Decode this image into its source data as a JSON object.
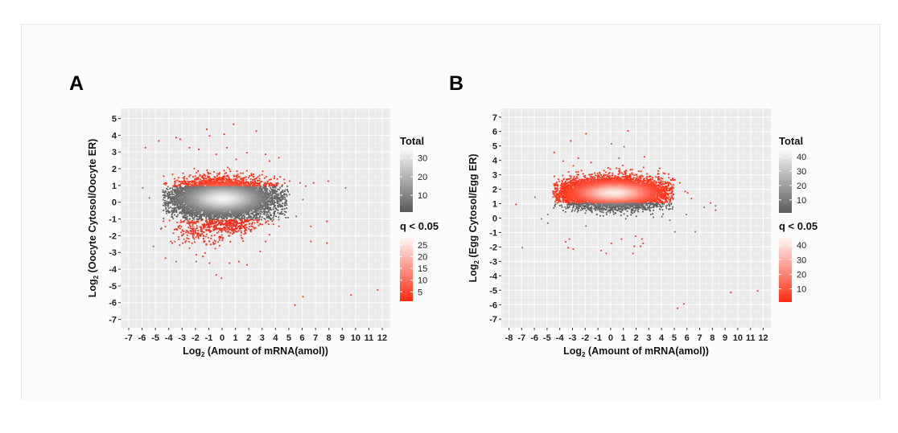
{
  "chart_data": [
    {
      "type": "heatmap",
      "panel_label": "A",
      "xlabel": "Log₂ (Amount of mRNA(amol))",
      "xlabel_main": "Log",
      "xlabel_sub": "2",
      "xlabel_rest": " (Amount of mRNA(amol))",
      "ylabel_main": "Log",
      "ylabel_sub": "2",
      "ylabel_rest": " (Oocyte Cytosol/Oocyte ER)",
      "xlim": [
        -7.6,
        12.6
      ],
      "ylim": [
        -7.5,
        5.6
      ],
      "xticks": [
        -7,
        -6,
        -5,
        -4,
        -3,
        -2,
        -1,
        0,
        1,
        2,
        3,
        4,
        5,
        6,
        7,
        8,
        9,
        10,
        11,
        12
      ],
      "yticks": [
        5,
        4,
        3,
        2,
        1,
        0,
        -1,
        -2,
        -3,
        -4,
        -5,
        -6,
        -7
      ],
      "grid": true,
      "significance_threshold_y": [
        1,
        -1
      ],
      "legend_placement": "right",
      "legend_total": {
        "title": "Total",
        "ticks": [
          30,
          20,
          10
        ],
        "range": [
          1,
          35
        ],
        "colors": [
          "#5a5a5a",
          "#fafafa"
        ]
      },
      "legend_q": {
        "title": "q < 0.05",
        "ticks": [
          25,
          20,
          15,
          10,
          5
        ],
        "range": [
          1,
          28
        ],
        "colors": [
          "#ff2a10",
          "#fff6f4"
        ]
      },
      "cloud": {
        "center_x": 0,
        "center_y": 0.25,
        "sx": 1.9,
        "sy": 0.55,
        "x_extent": [
          -4.2,
          4.5
        ]
      },
      "outliers_gray": [
        [
          -6,
          0.9
        ],
        [
          -5.5,
          0.3
        ],
        [
          -5.2,
          -2.6
        ],
        [
          -4.6,
          -1.5
        ],
        [
          -4.4,
          0.0
        ],
        [
          5,
          0.5
        ],
        [
          6,
          0.2
        ],
        [
          9.2,
          0.9
        ],
        [
          -3.5,
          -3.5
        ],
        [
          -2,
          -3.5
        ],
        [
          4.2,
          -1.0
        ],
        [
          5.5,
          -0.8
        ]
      ],
      "outliers_red": [
        [
          -5.8,
          3.3
        ],
        [
          -4.8,
          3.7
        ],
        [
          -3.5,
          3.9
        ],
        [
          -3.2,
          3.8
        ],
        [
          -1.2,
          4.4
        ],
        [
          -1,
          4.0
        ],
        [
          0.1,
          4.1
        ],
        [
          0.8,
          4.7
        ],
        [
          2.5,
          4.3
        ],
        [
          -2.5,
          3.3
        ],
        [
          -1.8,
          3.2
        ],
        [
          -0.5,
          2.9
        ],
        [
          0.3,
          3.3
        ],
        [
          1,
          2.6
        ],
        [
          1.8,
          3.0
        ],
        [
          3.2,
          2.9
        ],
        [
          3.5,
          2.5
        ],
        [
          4.2,
          2.7
        ],
        [
          4.6,
          1.4
        ],
        [
          5,
          1.3
        ],
        [
          5.8,
          1.2
        ],
        [
          6.2,
          1.0
        ],
        [
          7.9,
          1.3
        ],
        [
          6.8,
          1.2
        ],
        [
          -4.3,
          -3.3
        ],
        [
          -3.8,
          -2.4
        ],
        [
          -3.9,
          -2.3
        ],
        [
          -3,
          -2.4
        ],
        [
          -2.5,
          -2.7
        ],
        [
          -2,
          -3.1
        ],
        [
          -1.5,
          -3.2
        ],
        [
          -1,
          -3.6
        ],
        [
          -0.5,
          -4.3
        ],
        [
          -0.1,
          -4.5
        ],
        [
          0.5,
          -3.6
        ],
        [
          1.2,
          -3.5
        ],
        [
          1.8,
          -3.7
        ],
        [
          2.8,
          -2.9
        ],
        [
          3.2,
          -2.3
        ],
        [
          3.5,
          -1.9
        ],
        [
          6.6,
          -1.4
        ],
        [
          6.6,
          -2.3
        ],
        [
          7.8,
          -1.1
        ],
        [
          7.8,
          -2.4
        ],
        [
          5.4,
          -6.1
        ],
        [
          6,
          -5.6
        ],
        [
          9.6,
          -5.5
        ],
        [
          11.6,
          -5.2
        ]
      ],
      "red_clusters": [
        [
          -1.5,
          -1.6,
          1.2,
          0.45
        ],
        [
          0.8,
          -1.3,
          0.8,
          0.3
        ]
      ]
    },
    {
      "type": "heatmap",
      "panel_label": "B",
      "xlabel": "Log₂ (Amount of mRNA(amol))",
      "xlabel_main": "Log",
      "xlabel_sub": "2",
      "xlabel_rest": " (Amount of mRNA(amol))",
      "ylabel_main": "Log",
      "ylabel_sub": "2",
      "ylabel_rest": " (Egg Cytosol/Egg ER)",
      "xlim": [
        -8.6,
        12.6
      ],
      "ylim": [
        -7.6,
        7.6
      ],
      "xticks": [
        -8,
        -7,
        -6,
        -5,
        -4,
        -3,
        -2,
        -1,
        0,
        1,
        2,
        3,
        4,
        5,
        6,
        7,
        8,
        9,
        10,
        11,
        12
      ],
      "yticks": [
        7,
        6,
        5,
        4,
        3,
        2,
        1,
        0,
        -1,
        -2,
        -3,
        -4,
        -5,
        -6,
        -7
      ],
      "grid": true,
      "significance_threshold_y": [
        1.1,
        -1
      ],
      "legend_placement": "right",
      "legend_total": {
        "title": "Total",
        "ticks": [
          40,
          30,
          20,
          10
        ],
        "range": [
          1,
          45
        ],
        "colors": [
          "#5a5a5a",
          "#fafafa"
        ]
      },
      "legend_q": {
        "title": "q < 0.05",
        "ticks": [
          40,
          30,
          20,
          10
        ],
        "range": [
          1,
          45
        ],
        "colors": [
          "#ff2a10",
          "#fff6f4"
        ]
      },
      "cloud": {
        "center_x": 0.2,
        "center_y": 1.8,
        "sx": 2.0,
        "sy": 0.5,
        "x_extent": [
          -4.3,
          4.5
        ]
      },
      "outliers_gray": [
        [
          -7,
          -2
        ],
        [
          -6,
          1.5
        ],
        [
          -5.5,
          0.0
        ],
        [
          -5,
          0.3
        ],
        [
          -2,
          -0.5
        ],
        [
          4.6,
          -0.1
        ],
        [
          5.9,
          0.3
        ],
        [
          6.6,
          -0.9
        ],
        [
          7.3,
          0.8
        ],
        [
          8.2,
          0.9
        ],
        [
          5,
          -0.9
        ],
        [
          -5,
          -0.3
        ],
        [
          0,
          5.2
        ],
        [
          1,
          5.0
        ],
        [
          0.6,
          4.2
        ]
      ],
      "outliers_red": [
        [
          -7.5,
          1
        ],
        [
          -4.5,
          4.6
        ],
        [
          -3.2,
          5.4
        ],
        [
          -2,
          5.9
        ],
        [
          1.3,
          6.1
        ],
        [
          -3.8,
          4.0
        ],
        [
          -2.6,
          4.2
        ],
        [
          -1.6,
          3.9
        ],
        [
          0.4,
          3.5
        ],
        [
          1.5,
          3.4
        ],
        [
          2.6,
          4.3
        ],
        [
          3.8,
          3.5
        ],
        [
          4.5,
          3.1
        ],
        [
          5,
          2.7
        ],
        [
          5.4,
          2.5
        ],
        [
          5.8,
          1.9
        ],
        [
          6.3,
          1.4
        ],
        [
          6,
          1.8
        ],
        [
          7.8,
          1.1
        ],
        [
          8.2,
          0.6
        ],
        [
          -3.6,
          -1.6
        ],
        [
          -3.3,
          -1.4
        ],
        [
          -3,
          -2.1
        ],
        [
          -3.4,
          -2.0
        ],
        [
          -0.8,
          -2.2
        ],
        [
          -0.4,
          -2.4
        ],
        [
          0,
          -1.7
        ],
        [
          0.8,
          -1.4
        ],
        [
          1.7,
          -2.4
        ],
        [
          1.8,
          -1.9
        ],
        [
          2.3,
          -1.9
        ],
        [
          2.5,
          -1.7
        ],
        [
          2.4,
          -1.4
        ],
        [
          1.9,
          -1.2
        ],
        [
          5.2,
          -6.2
        ],
        [
          5.7,
          -5.9
        ],
        [
          9.4,
          -5.1
        ],
        [
          11.5,
          -5.0
        ]
      ],
      "red_clusters": []
    }
  ]
}
